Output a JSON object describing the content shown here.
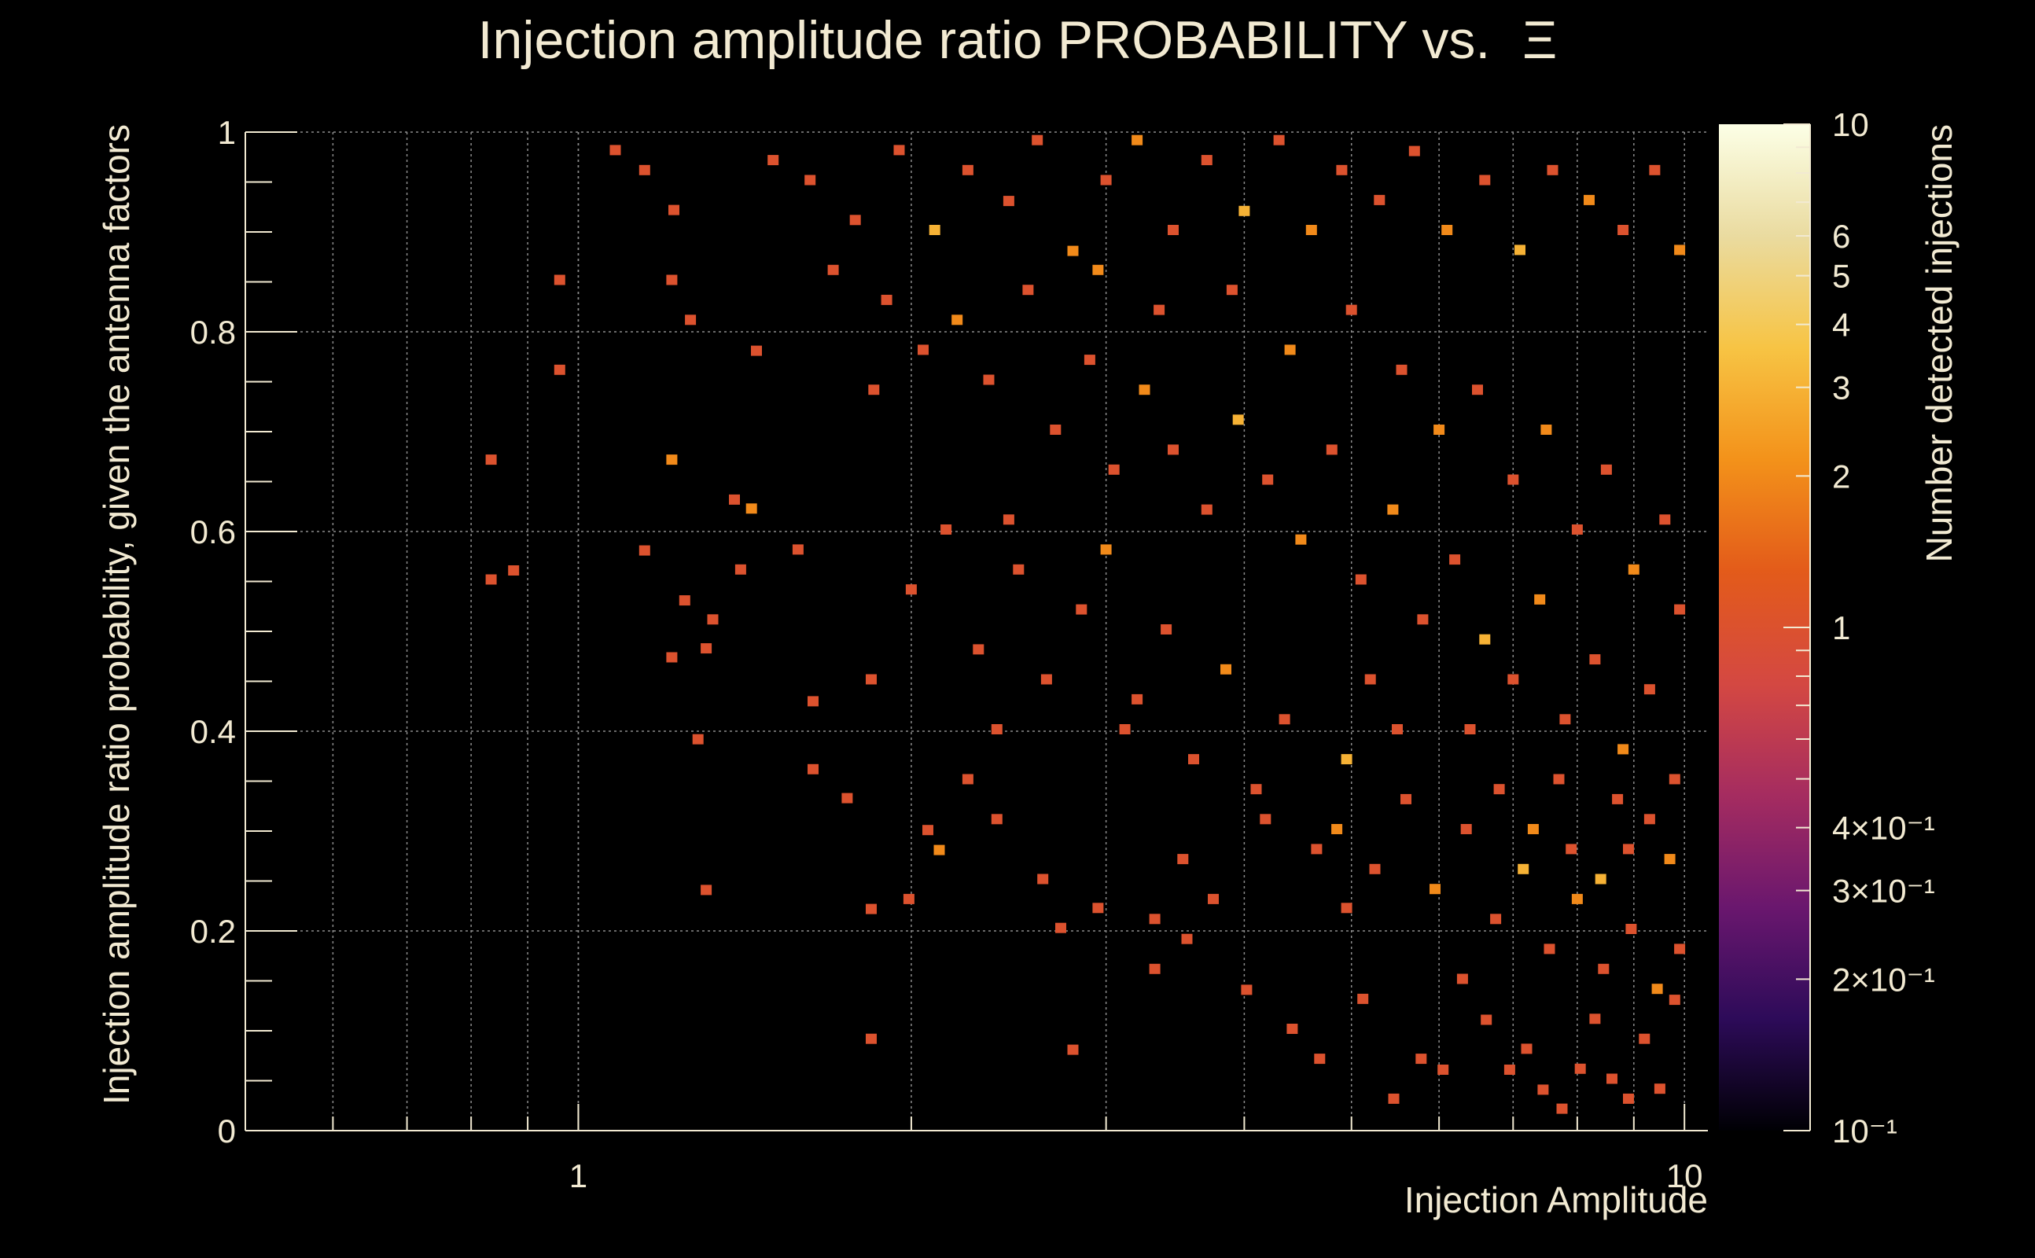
{
  "chart_data": {
    "type": "heatmap",
    "title": "Injection amplitude ratio PROBABILITY vs.",
    "title_symbol": "Ξ",
    "xlabel": "Injection Amplitude",
    "ylabel": "Injection amplitude ratio probability, given the antenna factors",
    "zlabel": "Number detected injections",
    "x_scale": "log",
    "xlim": [
      0.5,
      10.5
    ],
    "ylim": [
      0,
      1
    ],
    "z_scale": "log",
    "zlim": [
      0.1,
      10
    ],
    "grid": true,
    "x_tick_labels": [
      {
        "value": 1,
        "label": "1"
      },
      {
        "value": 10,
        "label": "10"
      }
    ],
    "y_tick_labels": [
      {
        "value": 0,
        "label": "0"
      },
      {
        "value": 0.2,
        "label": "0.2"
      },
      {
        "value": 0.4,
        "label": "0.4"
      },
      {
        "value": 0.6,
        "label": "0.6"
      },
      {
        "value": 0.8,
        "label": "0.8"
      },
      {
        "value": 1,
        "label": "1"
      }
    ],
    "z_tick_labels": [
      {
        "value": 0.1,
        "label": "10⁻¹"
      },
      {
        "value": 0.2,
        "label": "2×10⁻¹"
      },
      {
        "value": 0.3,
        "label": "3×10⁻¹"
      },
      {
        "value": 0.4,
        "label": "4×10⁻¹"
      },
      {
        "value": 1,
        "label": "1"
      },
      {
        "value": 2,
        "label": "2"
      },
      {
        "value": 3,
        "label": "3"
      },
      {
        "value": 4,
        "label": "4"
      },
      {
        "value": 5,
        "label": "5"
      },
      {
        "value": 6,
        "label": "6"
      },
      {
        "value": 10,
        "label": "10"
      }
    ],
    "colormap": [
      "#000004",
      "#2d0b59",
      "#6a176e",
      "#a52c60",
      "#d44842",
      "#e35b1a",
      "#f3921a",
      "#f7c444",
      "#eadba0",
      "#fcffe6"
    ],
    "cells": [
      [
        0.834,
        0.552,
        1
      ],
      [
        0.874,
        0.561,
        1
      ],
      [
        0.834,
        0.672,
        1
      ],
      [
        0.962,
        0.762,
        1
      ],
      [
        0.962,
        0.852,
        1
      ],
      [
        1.148,
        0.962,
        1
      ],
      [
        1.148,
        0.581,
        1
      ],
      [
        1.215,
        0.474,
        1
      ],
      [
        1.215,
        0.852,
        1
      ],
      [
        1.215,
        0.672,
        2
      ],
      [
        1.248,
        0.531,
        1
      ],
      [
        1.263,
        0.812,
        1
      ],
      [
        1.283,
        0.392,
        1
      ],
      [
        1.305,
        0.241,
        1
      ],
      [
        1.305,
        0.483,
        1
      ],
      [
        1.323,
        0.512,
        1
      ],
      [
        1.384,
        0.632,
        1
      ],
      [
        1.402,
        0.562,
        1
      ],
      [
        1.434,
        0.623,
        2
      ],
      [
        1.449,
        0.781,
        1
      ],
      [
        1.58,
        0.582,
        1
      ],
      [
        1.63,
        0.43,
        1
      ],
      [
        1.63,
        0.362,
        1
      ],
      [
        1.75,
        0.333,
        1
      ],
      [
        1.84,
        0.222,
        1
      ],
      [
        1.84,
        0.452,
        1
      ],
      [
        1.84,
        0.092,
        1
      ],
      [
        1.99,
        0.232,
        1
      ],
      [
        2.07,
        0.301,
        1
      ],
      [
        2.12,
        0.281,
        2
      ],
      [
        2.25,
        0.352,
        1
      ],
      [
        2.39,
        0.312,
        1
      ],
      [
        2.39,
        0.402,
        1
      ],
      [
        2.63,
        0.252,
        1
      ],
      [
        2.73,
        0.203,
        1
      ],
      [
        2.8,
        0.081,
        1
      ],
      [
        2.95,
        0.223,
        1
      ],
      [
        3.12,
        0.402,
        1
      ],
      [
        3.32,
        0.162,
        1
      ],
      [
        3.32,
        0.212,
        1
      ],
      [
        3.52,
        0.272,
        1
      ],
      [
        3.55,
        0.192,
        1
      ],
      [
        3.75,
        0.232,
        1
      ],
      [
        4.02,
        0.141,
        1
      ],
      [
        4.18,
        0.312,
        1
      ],
      [
        4.42,
        0.102,
        1
      ],
      [
        4.68,
        0.072,
        1
      ],
      [
        4.85,
        0.302,
        2
      ],
      [
        4.95,
        0.223,
        1
      ],
      [
        5.12,
        0.132,
        1
      ],
      [
        5.46,
        0.032,
        1
      ],
      [
        5.78,
        0.072,
        1
      ],
      [
        6.05,
        0.061,
        1
      ],
      [
        6.3,
        0.152,
        1
      ],
      [
        6.62,
        0.111,
        1
      ],
      [
        6.95,
        0.061,
        1
      ],
      [
        7.2,
        0.082,
        1
      ],
      [
        7.45,
        0.041,
        1
      ],
      [
        7.75,
        0.022,
        1
      ],
      [
        8.05,
        0.062,
        1
      ],
      [
        8.3,
        0.112,
        1
      ],
      [
        8.6,
        0.052,
        1
      ],
      [
        8.9,
        0.032,
        1
      ],
      [
        9.2,
        0.092,
        1
      ],
      [
        9.5,
        0.042,
        1
      ],
      [
        9.8,
        0.131,
        1
      ],
      [
        1.08,
        0.982,
        1
      ],
      [
        1.22,
        0.922,
        1
      ],
      [
        1.5,
        0.972,
        1
      ],
      [
        1.62,
        0.952,
        1
      ],
      [
        1.78,
        0.912,
        1
      ],
      [
        1.95,
        0.982,
        1
      ],
      [
        2.1,
        0.902,
        3
      ],
      [
        2.25,
        0.962,
        1
      ],
      [
        2.45,
        0.931,
        1
      ],
      [
        2.6,
        0.992,
        1
      ],
      [
        2.8,
        0.881,
        2
      ],
      [
        3.0,
        0.952,
        1
      ],
      [
        3.2,
        0.992,
        2
      ],
      [
        3.45,
        0.902,
        1
      ],
      [
        3.7,
        0.972,
        1
      ],
      [
        4.0,
        0.921,
        3
      ],
      [
        4.3,
        0.992,
        1
      ],
      [
        4.6,
        0.902,
        2
      ],
      [
        4.9,
        0.962,
        1
      ],
      [
        5.3,
        0.932,
        1
      ],
      [
        5.7,
        0.981,
        1
      ],
      [
        6.1,
        0.902,
        2
      ],
      [
        6.6,
        0.952,
        1
      ],
      [
        7.1,
        0.882,
        3
      ],
      [
        7.6,
        0.962,
        1
      ],
      [
        8.2,
        0.932,
        2
      ],
      [
        8.8,
        0.902,
        1
      ],
      [
        9.4,
        0.962,
        1
      ],
      [
        9.9,
        0.882,
        2
      ],
      [
        1.9,
        0.832,
        1
      ],
      [
        2.05,
        0.782,
        1
      ],
      [
        2.2,
        0.812,
        2
      ],
      [
        2.35,
        0.752,
        1
      ],
      [
        2.55,
        0.842,
        1
      ],
      [
        2.7,
        0.702,
        1
      ],
      [
        2.9,
        0.772,
        1
      ],
      [
        3.05,
        0.662,
        1
      ],
      [
        3.25,
        0.742,
        2
      ],
      [
        3.45,
        0.682,
        1
      ],
      [
        3.7,
        0.622,
        1
      ],
      [
        3.95,
        0.712,
        3
      ],
      [
        4.2,
        0.652,
        1
      ],
      [
        4.5,
        0.592,
        2
      ],
      [
        4.8,
        0.682,
        1
      ],
      [
        5.1,
        0.552,
        1
      ],
      [
        5.45,
        0.622,
        2
      ],
      [
        5.8,
        0.512,
        1
      ],
      [
        6.2,
        0.572,
        1
      ],
      [
        6.6,
        0.492,
        3
      ],
      [
        7.0,
        0.452,
        1
      ],
      [
        7.4,
        0.532,
        2
      ],
      [
        7.8,
        0.412,
        1
      ],
      [
        8.3,
        0.472,
        1
      ],
      [
        8.8,
        0.382,
        2
      ],
      [
        9.3,
        0.442,
        1
      ],
      [
        9.8,
        0.352,
        1
      ],
      [
        2.0,
        0.542,
        1
      ],
      [
        2.15,
        0.602,
        1
      ],
      [
        2.3,
        0.482,
        1
      ],
      [
        2.5,
        0.562,
        1
      ],
      [
        2.65,
        0.452,
        1
      ],
      [
        2.85,
        0.522,
        1
      ],
      [
        3.0,
        0.582,
        2
      ],
      [
        3.2,
        0.432,
        1
      ],
      [
        3.4,
        0.502,
        1
      ],
      [
        3.6,
        0.372,
        1
      ],
      [
        3.85,
        0.462,
        2
      ],
      [
        4.1,
        0.342,
        1
      ],
      [
        4.35,
        0.412,
        1
      ],
      [
        4.65,
        0.282,
        1
      ],
      [
        4.95,
        0.372,
        3
      ],
      [
        5.25,
        0.262,
        1
      ],
      [
        5.6,
        0.332,
        1
      ],
      [
        5.95,
        0.242,
        2
      ],
      [
        6.35,
        0.302,
        1
      ],
      [
        6.75,
        0.212,
        1
      ],
      [
        7.15,
        0.262,
        3
      ],
      [
        7.55,
        0.182,
        1
      ],
      [
        8.0,
        0.232,
        2
      ],
      [
        8.45,
        0.162,
        1
      ],
      [
        8.95,
        0.202,
        1
      ],
      [
        9.45,
        0.142,
        2
      ],
      [
        9.9,
        0.182,
        1
      ],
      [
        1.7,
        0.862,
        1
      ],
      [
        1.85,
        0.742,
        1
      ],
      [
        2.45,
        0.612,
        1
      ],
      [
        2.95,
        0.862,
        2
      ],
      [
        3.35,
        0.822,
        1
      ],
      [
        3.9,
        0.842,
        1
      ],
      [
        4.4,
        0.782,
        2
      ],
      [
        5.0,
        0.822,
        1
      ],
      [
        5.55,
        0.762,
        1
      ],
      [
        6.0,
        0.702,
        2
      ],
      [
        6.5,
        0.742,
        1
      ],
      [
        7.0,
        0.652,
        1
      ],
      [
        7.5,
        0.702,
        2
      ],
      [
        8.0,
        0.602,
        1
      ],
      [
        8.5,
        0.662,
        1
      ],
      [
        9.0,
        0.562,
        2
      ],
      [
        9.6,
        0.612,
        1
      ],
      [
        9.9,
        0.522,
        1
      ],
      [
        5.2,
        0.452,
        1
      ],
      [
        5.5,
        0.402,
        1
      ],
      [
        6.8,
        0.342,
        1
      ],
      [
        7.3,
        0.302,
        2
      ],
      [
        7.9,
        0.282,
        1
      ],
      [
        8.4,
        0.252,
        3
      ],
      [
        8.9,
        0.282,
        1
      ],
      [
        9.3,
        0.312,
        1
      ],
      [
        9.7,
        0.272,
        2
      ],
      [
        6.4,
        0.402,
        1
      ],
      [
        7.7,
        0.352,
        1
      ],
      [
        8.7,
        0.332,
        1
      ]
    ]
  }
}
